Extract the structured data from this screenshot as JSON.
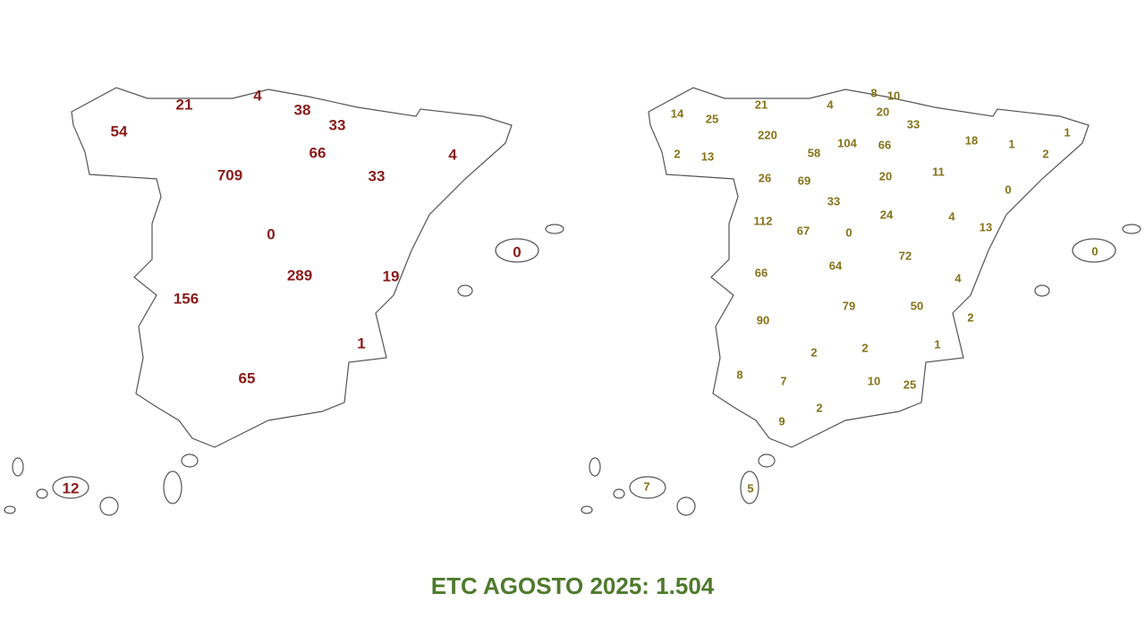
{
  "title": "ETC AGOSTO 2025: 1.504",
  "left_map": {
    "regions": [
      {
        "value": 54,
        "color": "#94a571"
      },
      {
        "value": 21,
        "color": "#c5d1a3"
      },
      {
        "value": 4,
        "color": "#e8eed8"
      },
      {
        "value": 38,
        "color": "#c5d1a3"
      },
      {
        "value": 33,
        "color": "#c5d1a3"
      },
      {
        "value": 66,
        "color": "#94a571"
      },
      {
        "value": 709,
        "color": "#4d5e3a"
      },
      {
        "value": 33,
        "color": "#c5d1a3"
      },
      {
        "value": 4,
        "color": "#e8eed8"
      },
      {
        "value": 0,
        "color": "#f3f6ea"
      },
      {
        "value": 289,
        "color": "#7fa63a"
      },
      {
        "value": 156,
        "color": "#7fa63a"
      },
      {
        "value": 19,
        "color": "#c5d1a3"
      },
      {
        "value": 1,
        "color": "#e8eed8"
      },
      {
        "value": 65,
        "color": "#94a571"
      },
      {
        "value": 0,
        "color": "#f3f6ea"
      },
      {
        "value": 12,
        "color": "#c5d1a3"
      }
    ]
  },
  "right_map": {
    "regions": [
      {
        "value": 14,
        "color": "#fde3bb"
      },
      {
        "value": 25,
        "color": "#f9c48a"
      },
      {
        "value": 21,
        "color": "#f9c48a"
      },
      {
        "value": 4,
        "color": "#fde3bb"
      },
      {
        "value": 8,
        "color": "#fde3bb"
      },
      {
        "value": 10,
        "color": "#fde3bb"
      },
      {
        "value": 20,
        "color": "#fde3bb"
      },
      {
        "value": 33,
        "color": "#f9c48a"
      },
      {
        "value": 220,
        "color": "#f7a035"
      },
      {
        "value": 104,
        "color": "#f7a035"
      },
      {
        "value": 66,
        "color": "#f7a035"
      },
      {
        "value": 58,
        "color": "#f9c48a"
      },
      {
        "value": 13,
        "color": "#fde3bb"
      },
      {
        "value": 2,
        "color": "#fde3bb"
      },
      {
        "value": 18,
        "color": "#fde3bb"
      },
      {
        "value": 1,
        "color": "#fde3bb"
      },
      {
        "value": 1,
        "color": "#fde3bb"
      },
      {
        "value": 2,
        "color": "#fde3bb"
      },
      {
        "value": 20,
        "color": "#fde3bb"
      },
      {
        "value": 11,
        "color": "#fde3bb"
      },
      {
        "value": 26,
        "color": "#f9c48a"
      },
      {
        "value": 69,
        "color": "#f7a035"
      },
      {
        "value": 33,
        "color": "#f9c48a"
      },
      {
        "value": 24,
        "color": "#f9c48a"
      },
      {
        "value": 0,
        "color": "#f4f8e6"
      },
      {
        "value": 4,
        "color": "#fde3bb"
      },
      {
        "value": 13,
        "color": "#fde3bb"
      },
      {
        "value": 112,
        "color": "#f7a035"
      },
      {
        "value": 67,
        "color": "#f7a035"
      },
      {
        "value": 0,
        "color": "#f4f8e6"
      },
      {
        "value": 64,
        "color": "#f7a035"
      },
      {
        "value": 72,
        "color": "#f7a035"
      },
      {
        "value": 66,
        "color": "#f7a035"
      },
      {
        "value": 4,
        "color": "#fde3bb"
      },
      {
        "value": 0,
        "color": "#f4f8e6"
      },
      {
        "value": 90,
        "color": "#f7a035"
      },
      {
        "value": 79,
        "color": "#f7a035"
      },
      {
        "value": 50,
        "color": "#f9c48a"
      },
      {
        "value": 2,
        "color": "#fde3bb"
      },
      {
        "value": 1,
        "color": "#fde3bb"
      },
      {
        "value": 2,
        "color": "#fde3bb"
      },
      {
        "value": 2,
        "color": "#fde3bb"
      },
      {
        "value": 8,
        "color": "#fde3bb"
      },
      {
        "value": 7,
        "color": "#fde3bb"
      },
      {
        "value": 10,
        "color": "#fde3bb"
      },
      {
        "value": 25,
        "color": "#f9c48a"
      },
      {
        "value": 2,
        "color": "#fde3bb"
      },
      {
        "value": 9,
        "color": "#fde3bb"
      },
      {
        "value": 7,
        "color": "#fde3bb"
      },
      {
        "value": 5,
        "color": "#fde3bb"
      }
    ]
  }
}
